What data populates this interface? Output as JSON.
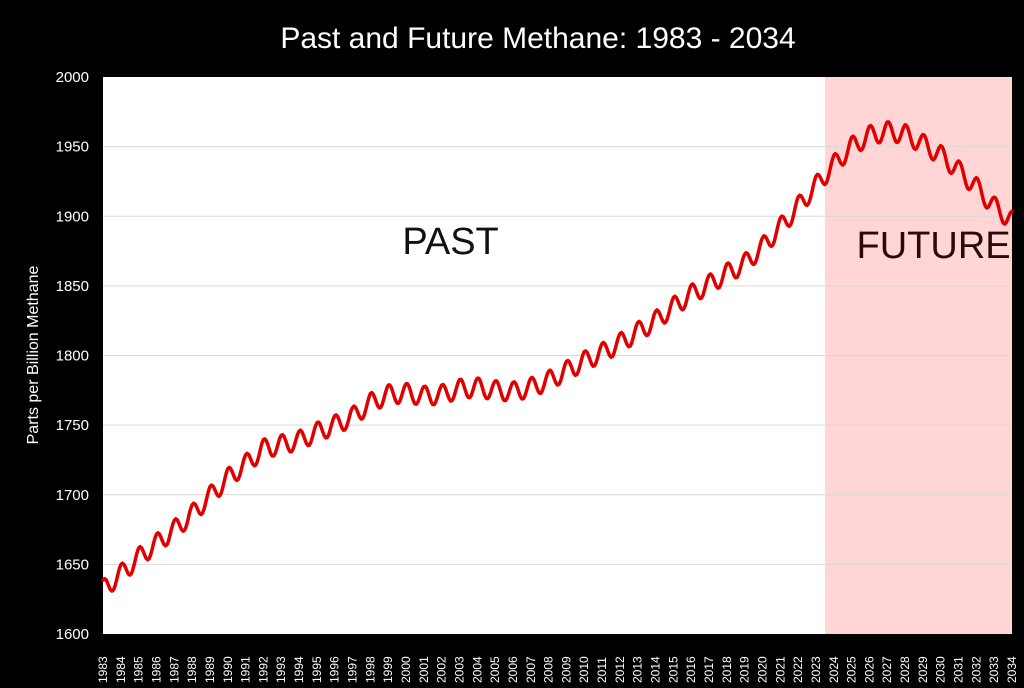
{
  "chart_data": {
    "type": "line",
    "title": "Past and Future Methane: 1983 - 2034",
    "xlabel": "",
    "ylabel": "Parts per Billion Methane",
    "ylim": [
      1600,
      2000
    ],
    "yticks": [
      1600,
      1650,
      1700,
      1750,
      1800,
      1850,
      1900,
      1950,
      2000
    ],
    "xlim": [
      1983,
      2034
    ],
    "xticks": [
      "1983",
      "1984",
      "1985",
      "1986",
      "1987",
      "1988",
      "1989",
      "1990",
      "1991",
      "1992",
      "1993",
      "1994",
      "1995",
      "1996",
      "1997",
      "1998",
      "1999",
      "2000",
      "2001",
      "2002",
      "2003",
      "2004",
      "2005",
      "2006",
      "2007",
      "2008",
      "2009",
      "2010",
      "2011",
      "2012",
      "2013",
      "2014",
      "2015",
      "2016",
      "2017",
      "2018",
      "2019",
      "2020",
      "2021",
      "2022",
      "2023",
      "2024",
      "2025",
      "2026",
      "2027",
      "2028",
      "2029",
      "2030",
      "2031",
      "2032",
      "2033",
      "2034"
    ],
    "grid": true,
    "annotations": [
      {
        "text": "PAST",
        "x": 2002.5,
        "y": 1873
      },
      {
        "text": "FUTURE",
        "x": 2029.6,
        "y": 1870
      }
    ],
    "shaded_region": {
      "x_start": 2023.5,
      "x_end": 2034,
      "color": "#ffd5d6"
    },
    "series": [
      {
        "color": "#e00000",
        "seasonal_amplitude": 7,
        "x": [
          1983.0,
          1984.0,
          1985.0,
          1986.0,
          1987.0,
          1988.0,
          1989.0,
          1990.0,
          1991.0,
          1992.0,
          1993.0,
          1994.0,
          1995.0,
          1996.0,
          1997.0,
          1998.0,
          1999.0,
          2000.0,
          2001.0,
          2002.0,
          2003.0,
          2004.0,
          2005.0,
          2006.0,
          2007.0,
          2008.0,
          2009.0,
          2010.0,
          2011.0,
          2012.0,
          2013.0,
          2014.0,
          2015.0,
          2016.0,
          2017.0,
          2018.0,
          2019.0,
          2020.0,
          2021.0,
          2022.0,
          2023.0,
          2024.0,
          2025.0,
          2026.0,
          2027.0,
          2028.0,
          2029.0,
          2030.0,
          2031.0,
          2032.0,
          2033.0,
          2034.0
        ],
        "y": [
          1632,
          1643,
          1655,
          1665,
          1675,
          1686,
          1699,
          1712,
          1722,
          1733,
          1736,
          1739,
          1745,
          1750,
          1756,
          1766,
          1772,
          1773,
          1771,
          1772,
          1776,
          1777,
          1775,
          1774,
          1777,
          1782,
          1789,
          1796,
          1802,
          1809,
          1817,
          1825,
          1835,
          1844,
          1851,
          1859,
          1866,
          1878,
          1892,
          1907,
          1922,
          1937,
          1950,
          1958,
          1961,
          1959,
          1952,
          1944,
          1933,
          1921,
          1907,
          1897
        ]
      }
    ]
  }
}
